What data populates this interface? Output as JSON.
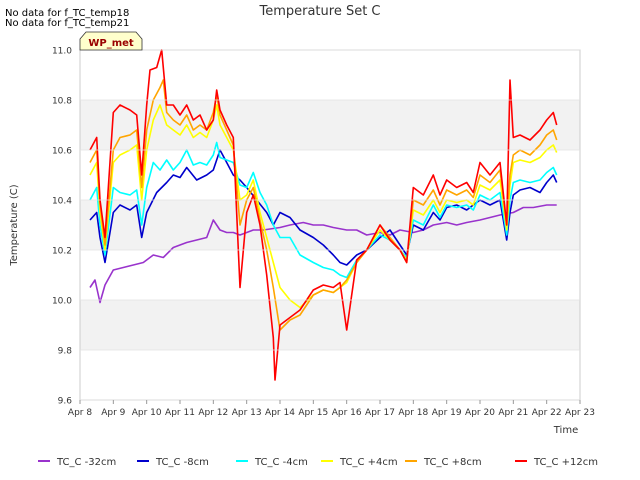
{
  "notes": [
    "No data for f_TC_temp18",
    "No data for f_TC_temp21"
  ],
  "site_label": "WP_met",
  "chart_data": {
    "type": "line",
    "title": "Temperature Set C",
    "xlabel": "Time",
    "ylabel": "Temperature (C)",
    "ylim": [
      9.6,
      11.0
    ],
    "xlim": [
      8,
      23
    ],
    "x_ticks": [
      8,
      9,
      10,
      11,
      12,
      13,
      14,
      15,
      16,
      17,
      18,
      19,
      20,
      21,
      22,
      23
    ],
    "x_tick_labels": [
      "Apr 8",
      "Apr 9",
      "Apr 10",
      "Apr 11",
      "Apr 12",
      "Apr 13",
      "Apr 14",
      "Apr 15",
      "Apr 16",
      "Apr 17",
      "Apr 18",
      "Apr 19",
      "Apr 20",
      "Apr 21",
      "Apr 22",
      "Apr 23"
    ],
    "y_ticks": [
      9.6,
      9.8,
      10.0,
      10.2,
      10.4,
      10.6,
      10.8,
      11.0
    ],
    "y_tick_labels": [
      "9.6",
      "9.8",
      "10.0",
      "10.2",
      "10.4",
      "10.6",
      "10.8",
      "11.0"
    ],
    "grid": true,
    "legend_position": "bottom",
    "series": [
      {
        "name": "TC_C -32cm",
        "color": "#9933cc",
        "x": [
          8.3,
          8.45,
          8.6,
          8.75,
          9.0,
          9.3,
          9.6,
          9.9,
          10.2,
          10.5,
          10.8,
          11.0,
          11.2,
          11.5,
          11.8,
          12.0,
          12.2,
          12.4,
          12.6,
          12.8,
          13.0,
          13.2,
          13.5,
          14.0,
          14.3,
          14.7,
          15.0,
          15.3,
          15.6,
          16.0,
          16.3,
          16.6,
          17.0,
          17.3,
          17.6,
          18.0,
          18.3,
          18.6,
          19.0,
          19.3,
          19.6,
          20.0,
          20.3,
          20.6,
          21.0,
          21.3,
          21.6,
          22.0,
          22.3
        ],
        "y": [
          10.05,
          10.08,
          9.99,
          10.06,
          10.12,
          10.13,
          10.14,
          10.15,
          10.18,
          10.17,
          10.21,
          10.22,
          10.23,
          10.24,
          10.25,
          10.32,
          10.28,
          10.27,
          10.27,
          10.26,
          10.27,
          10.28,
          10.28,
          10.29,
          10.3,
          10.31,
          10.3,
          10.3,
          10.29,
          10.28,
          10.28,
          10.26,
          10.27,
          10.26,
          10.28,
          10.27,
          10.28,
          10.3,
          10.31,
          10.3,
          10.31,
          10.32,
          10.33,
          10.34,
          10.35,
          10.37,
          10.37,
          10.38,
          10.38
        ]
      },
      {
        "name": "TC_C -8cm",
        "color": "#0000cc",
        "x": [
          8.3,
          8.5,
          8.6,
          8.75,
          9.0,
          9.2,
          9.5,
          9.7,
          9.85,
          10.0,
          10.3,
          10.6,
          10.8,
          11.0,
          11.2,
          11.5,
          11.8,
          12.0,
          12.2,
          12.4,
          12.6,
          12.8,
          13.0,
          13.3,
          13.6,
          13.8,
          14.0,
          14.3,
          14.6,
          15.0,
          15.3,
          15.6,
          15.8,
          16.0,
          16.3,
          16.6,
          17.0,
          17.3,
          17.6,
          17.8,
          18.0,
          18.3,
          18.6,
          18.8,
          19.0,
          19.3,
          19.6,
          19.8,
          20.0,
          20.3,
          20.6,
          20.8,
          20.9,
          21.0,
          21.2,
          21.5,
          21.8,
          22.0,
          22.2,
          22.3
        ],
        "y": [
          10.32,
          10.35,
          10.25,
          10.15,
          10.35,
          10.38,
          10.36,
          10.38,
          10.25,
          10.35,
          10.43,
          10.47,
          10.5,
          10.49,
          10.53,
          10.48,
          10.5,
          10.52,
          10.6,
          10.55,
          10.5,
          10.48,
          10.45,
          10.4,
          10.35,
          10.3,
          10.35,
          10.33,
          10.28,
          10.25,
          10.22,
          10.18,
          10.15,
          10.14,
          10.18,
          10.2,
          10.25,
          10.28,
          10.22,
          10.18,
          10.3,
          10.28,
          10.35,
          10.32,
          10.37,
          10.38,
          10.36,
          10.38,
          10.4,
          10.38,
          10.4,
          10.24,
          10.35,
          10.42,
          10.44,
          10.45,
          10.43,
          10.47,
          10.5,
          10.47
        ]
      },
      {
        "name": "TC_C -4cm",
        "color": "#00ffff",
        "x": [
          8.3,
          8.5,
          8.6,
          8.75,
          9.0,
          9.2,
          9.5,
          9.7,
          9.85,
          10.0,
          10.2,
          10.4,
          10.6,
          10.8,
          11.0,
          11.2,
          11.4,
          11.6,
          11.8,
          12.0,
          12.1,
          12.2,
          12.4,
          12.6,
          12.8,
          13.0,
          13.2,
          13.4,
          13.6,
          13.8,
          14.0,
          14.3,
          14.6,
          15.0,
          15.3,
          15.6,
          15.8,
          16.0,
          16.3,
          16.6,
          17.0,
          17.3,
          17.6,
          17.8,
          18.0,
          18.3,
          18.6,
          18.8,
          19.0,
          19.3,
          19.6,
          19.8,
          20.0,
          20.3,
          20.6,
          20.8,
          20.9,
          21.0,
          21.2,
          21.5,
          21.8,
          22.0,
          22.2,
          22.3
        ],
        "y": [
          10.4,
          10.45,
          10.3,
          10.18,
          10.45,
          10.43,
          10.42,
          10.44,
          10.3,
          10.45,
          10.55,
          10.52,
          10.56,
          10.52,
          10.55,
          10.6,
          10.54,
          10.55,
          10.54,
          10.58,
          10.63,
          10.57,
          10.56,
          10.55,
          10.46,
          10.45,
          10.51,
          10.43,
          10.38,
          10.3,
          10.25,
          10.25,
          10.18,
          10.15,
          10.13,
          10.12,
          10.1,
          10.09,
          10.16,
          10.2,
          10.26,
          10.24,
          10.2,
          10.17,
          10.32,
          10.3,
          10.38,
          10.33,
          10.38,
          10.37,
          10.38,
          10.36,
          10.42,
          10.4,
          10.43,
          10.26,
          10.4,
          10.47,
          10.48,
          10.47,
          10.48,
          10.51,
          10.53,
          10.5
        ]
      },
      {
        "name": "TC_C +4cm",
        "color": "#ffff00",
        "x": [
          8.3,
          8.5,
          8.6,
          8.75,
          9.0,
          9.2,
          9.5,
          9.7,
          9.85,
          10.0,
          10.2,
          10.4,
          10.6,
          10.8,
          11.0,
          11.2,
          11.4,
          11.6,
          11.8,
          12.0,
          12.1,
          12.2,
          12.4,
          12.6,
          12.8,
          13.0,
          13.2,
          13.4,
          13.6,
          13.8,
          14.0,
          14.3,
          14.6,
          15.0,
          15.3,
          15.6,
          15.8,
          16.0,
          16.3,
          16.6,
          17.0,
          17.3,
          17.6,
          17.8,
          18.0,
          18.3,
          18.6,
          18.8,
          19.0,
          19.3,
          19.6,
          19.8,
          20.0,
          20.3,
          20.6,
          20.8,
          20.9,
          21.0,
          21.2,
          21.5,
          21.8,
          22.0,
          22.2,
          22.3
        ],
        "y": [
          10.5,
          10.55,
          10.35,
          10.2,
          10.55,
          10.58,
          10.6,
          10.62,
          10.4,
          10.6,
          10.72,
          10.78,
          10.7,
          10.68,
          10.66,
          10.7,
          10.65,
          10.67,
          10.65,
          10.72,
          10.78,
          10.7,
          10.65,
          10.6,
          10.4,
          10.42,
          10.48,
          10.35,
          10.25,
          10.15,
          10.05,
          10.0,
          9.97,
          10.02,
          10.04,
          10.03,
          10.05,
          10.07,
          10.15,
          10.2,
          10.28,
          10.24,
          10.2,
          10.16,
          10.36,
          10.34,
          10.4,
          10.35,
          10.4,
          10.39,
          10.4,
          10.38,
          10.46,
          10.44,
          10.48,
          10.28,
          10.46,
          10.55,
          10.56,
          10.55,
          10.57,
          10.6,
          10.62,
          10.59
        ]
      },
      {
        "name": "TC_C +8cm",
        "color": "#ffa500",
        "x": [
          8.3,
          8.5,
          8.6,
          8.75,
          9.0,
          9.2,
          9.5,
          9.7,
          9.85,
          10.0,
          10.2,
          10.4,
          10.5,
          10.6,
          10.8,
          11.0,
          11.2,
          11.4,
          11.6,
          11.8,
          12.0,
          12.1,
          12.2,
          12.4,
          12.6,
          12.8,
          13.0,
          13.2,
          13.4,
          13.6,
          13.8,
          14.0,
          14.3,
          14.6,
          15.0,
          15.3,
          15.6,
          15.8,
          16.0,
          16.3,
          16.6,
          17.0,
          17.3,
          17.6,
          17.8,
          18.0,
          18.3,
          18.6,
          18.8,
          19.0,
          19.3,
          19.6,
          19.8,
          20.0,
          20.3,
          20.6,
          20.8,
          20.9,
          21.0,
          21.2,
          21.5,
          21.8,
          22.0,
          22.2,
          22.3
        ],
        "y": [
          10.55,
          10.6,
          10.38,
          10.22,
          10.6,
          10.65,
          10.66,
          10.68,
          10.45,
          10.68,
          10.8,
          10.85,
          10.88,
          10.75,
          10.72,
          10.7,
          10.74,
          10.68,
          10.7,
          10.68,
          10.75,
          10.82,
          10.74,
          10.68,
          10.62,
          10.3,
          10.4,
          10.45,
          10.32,
          10.2,
          10.05,
          9.88,
          9.92,
          9.94,
          10.02,
          10.04,
          10.03,
          10.05,
          10.08,
          10.15,
          10.2,
          10.3,
          10.25,
          10.2,
          10.15,
          10.4,
          10.38,
          10.44,
          10.38,
          10.44,
          10.42,
          10.44,
          10.41,
          10.5,
          10.47,
          10.52,
          10.3,
          10.5,
          10.58,
          10.6,
          10.58,
          10.62,
          10.66,
          10.68,
          10.64
        ]
      },
      {
        "name": "TC_C +12cm",
        "color": "#ff0000",
        "x": [
          8.3,
          8.5,
          8.6,
          8.75,
          9.0,
          9.2,
          9.5,
          9.7,
          9.85,
          10.0,
          10.1,
          10.3,
          10.45,
          10.6,
          10.8,
          11.0,
          11.2,
          11.4,
          11.6,
          11.8,
          12.0,
          12.1,
          12.2,
          12.4,
          12.6,
          12.8,
          13.0,
          13.2,
          13.4,
          13.6,
          13.8,
          13.85,
          14.0,
          14.3,
          14.6,
          15.0,
          15.3,
          15.6,
          15.8,
          16.0,
          16.3,
          16.6,
          17.0,
          17.3,
          17.6,
          17.8,
          18.0,
          18.3,
          18.6,
          18.8,
          19.0,
          19.3,
          19.6,
          19.8,
          20.0,
          20.3,
          20.6,
          20.8,
          20.9,
          21.0,
          21.2,
          21.5,
          21.8,
          22.0,
          22.2,
          22.3
        ],
        "y": [
          10.6,
          10.65,
          10.4,
          10.25,
          10.75,
          10.78,
          10.76,
          10.74,
          10.5,
          10.78,
          10.92,
          10.93,
          11.0,
          10.78,
          10.78,
          10.74,
          10.78,
          10.72,
          10.74,
          10.68,
          10.72,
          10.84,
          10.76,
          10.7,
          10.65,
          10.05,
          10.35,
          10.42,
          10.3,
          10.1,
          9.85,
          9.68,
          9.9,
          9.93,
          9.96,
          10.04,
          10.06,
          10.05,
          10.07,
          9.88,
          10.16,
          10.2,
          10.3,
          10.24,
          10.2,
          10.15,
          10.45,
          10.42,
          10.5,
          10.42,
          10.48,
          10.45,
          10.47,
          10.43,
          10.55,
          10.5,
          10.55,
          10.3,
          10.88,
          10.65,
          10.66,
          10.64,
          10.68,
          10.72,
          10.75,
          10.7
        ]
      }
    ]
  }
}
